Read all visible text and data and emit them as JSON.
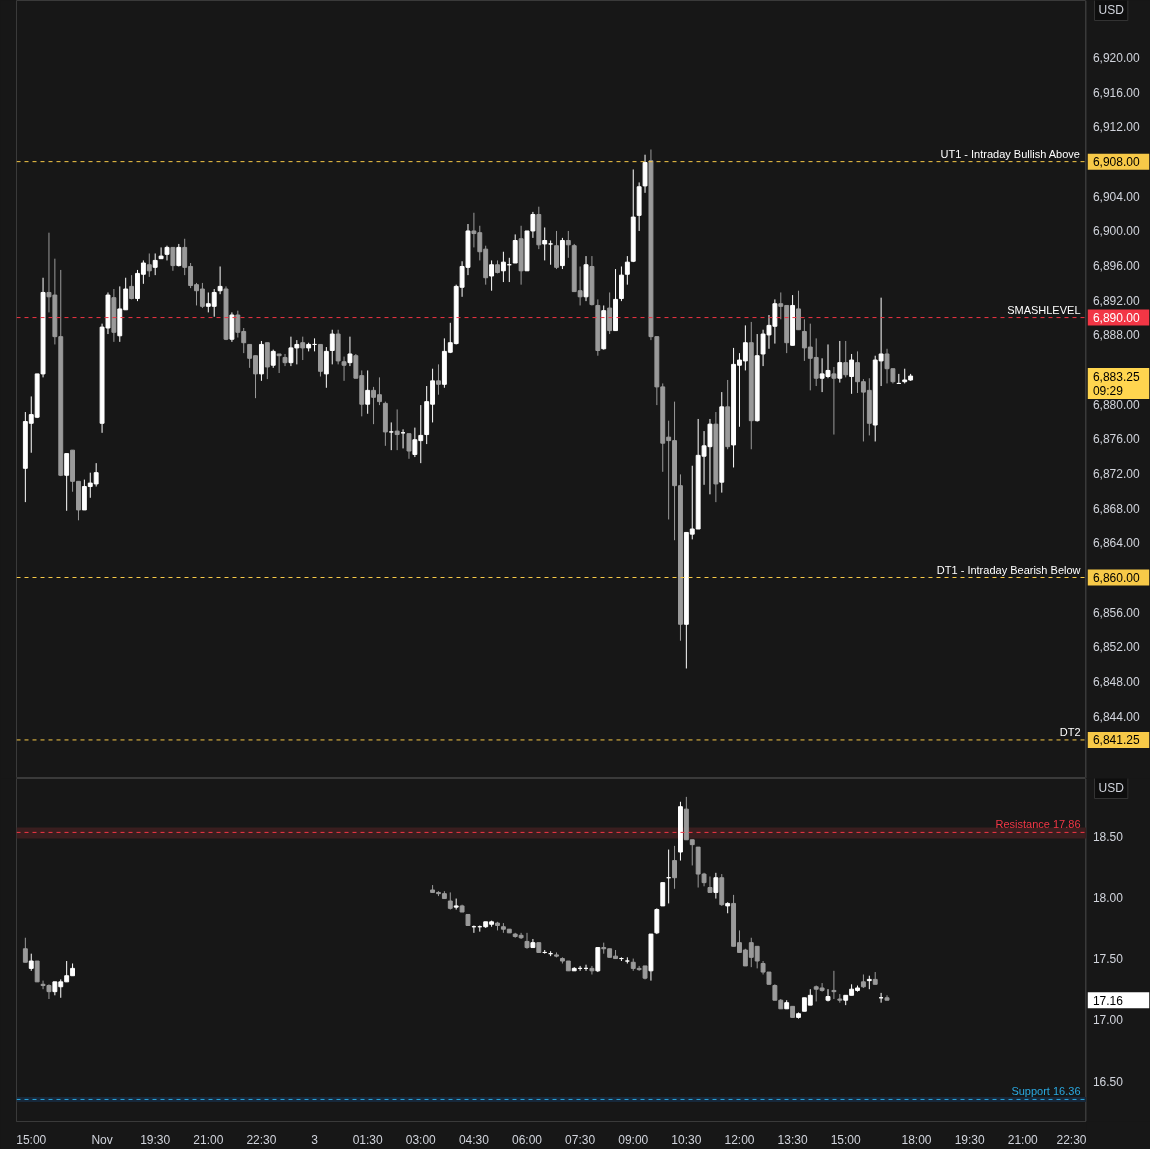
{
  "chart_data": [
    {
      "type": "candlestick",
      "categories": [
        null,
        null,
        null,
        null,
        null,
        null,
        null,
        null,
        null,
        null,
        null,
        null,
        null,
        null,
        null,
        null,
        null,
        null,
        null,
        null,
        null,
        null,
        null,
        null,
        null,
        null,
        null,
        null,
        null,
        null,
        null,
        null,
        null,
        null,
        null,
        null,
        null,
        null,
        null,
        null,
        null,
        null,
        null,
        null,
        null,
        null,
        null,
        null,
        null,
        null,
        null,
        null,
        null,
        null,
        null,
        null,
        null,
        null,
        null,
        null,
        null,
        null,
        null,
        null,
        null,
        null,
        null,
        null,
        null,
        null,
        null,
        null,
        null,
        null,
        null,
        null,
        null,
        null,
        null,
        null,
        null,
        null,
        null,
        null,
        null,
        null,
        null,
        null,
        null,
        null,
        null,
        null,
        null,
        null,
        null,
        null,
        null,
        null,
        null,
        null,
        null,
        null,
        null,
        null,
        null,
        null,
        null,
        null,
        null,
        null,
        null,
        null,
        null,
        null,
        null,
        null,
        null,
        null,
        null,
        null,
        null,
        null,
        null,
        null,
        null,
        null,
        null,
        null,
        null,
        null,
        null,
        null,
        null,
        null,
        null,
        null,
        null,
        null,
        null,
        null,
        null,
        null,
        null,
        null,
        null,
        null,
        null,
        null,
        null,
        null,
        null,
        null,
        null,
        null,
        null,
        null,
        null,
        null,
        null,
        null,
        null,
        null,
        null,
        null,
        null,
        null,
        null,
        null,
        null,
        null,
        null,
        null,
        null,
        null,
        null,
        null,
        null,
        null,
        null,
        null,
        null
      ],
      "ohlc": [
        null,
        [
          6872.6,
          6879.1,
          6868.7,
          6878.0
        ],
        [
          6877.8,
          6880.9,
          6874.4,
          6878.8
        ],
        [
          6878.5,
          6883.5,
          6878.4,
          6883.5
        ],
        [
          6883.5,
          6894.6,
          6883.1,
          6892.9
        ],
        [
          6892.9,
          6899.8,
          6890.6,
          6892.4
        ],
        [
          6892.6,
          6896.8,
          6886.9,
          6887.8
        ],
        [
          6887.8,
          6895.5,
          6871.7,
          6871.8
        ],
        [
          6871.8,
          6874.3,
          6867.7,
          6874.3
        ],
        [
          6874.7,
          6874.7,
          6869.9,
          6871.1
        ],
        [
          6871.1,
          6871.1,
          6866.6,
          6867.8
        ],
        [
          6867.8,
          6871.3,
          6867.8,
          6870.5
        ],
        [
          6870.5,
          6872.1,
          6869.2,
          6870.9
        ],
        [
          6870.8,
          6873.2,
          6870.5,
          6872.1
        ],
        [
          6877.8,
          6889.3,
          6876.7,
          6888.9
        ],
        [
          6888.8,
          6892.9,
          6888.1,
          6892.6
        ],
        [
          6892.3,
          6893.3,
          6887.2,
          6888.3
        ],
        [
          6887.9,
          6893.6,
          6887.2,
          6891.0
        ],
        [
          6890.9,
          6894.6,
          6890.9,
          6893.3
        ],
        [
          6893.6,
          6894.9,
          6892.1,
          6892.2
        ],
        [
          6892.2,
          6895.5,
          6891.9,
          6895.1
        ],
        [
          6895.0,
          6896.6,
          6893.9,
          6896.3
        ],
        [
          6896.1,
          6897.4,
          6894.7,
          6895.4
        ],
        [
          6895.8,
          6897.4,
          6894.9,
          6896.6
        ],
        [
          6896.8,
          6898.1,
          6896.8,
          6897.1
        ],
        [
          6897.3,
          6898.3,
          6896.6,
          6898.1
        ],
        [
          6898.1,
          6898.1,
          6895.4,
          6896.0
        ],
        [
          6896.0,
          6898.5,
          6895.9,
          6898.1
        ],
        [
          6898.1,
          6899.1,
          6894.9,
          6895.8
        ],
        [
          6895.9,
          6896.3,
          6893.4,
          6893.7
        ],
        [
          6893.8,
          6894.0,
          6891.4,
          6893.1
        ],
        [
          6893.3,
          6894.0,
          6891.1,
          6891.3
        ],
        [
          6891.3,
          6892.9,
          6890.6,
          6891.6
        ],
        [
          6891.3,
          6893.3,
          6890.1,
          6892.9
        ],
        [
          6893.1,
          6895.9,
          6892.7,
          6893.6
        ],
        [
          6893.3,
          6893.6,
          6887.4,
          6887.5
        ],
        [
          6887.5,
          6890.6,
          6887.2,
          6890.3
        ],
        [
          6890.3,
          6890.8,
          6887.7,
          6888.3
        ],
        [
          6888.4,
          6888.8,
          6885.9,
          6887.1
        ],
        [
          6886.9,
          6886.9,
          6884.2,
          6885.3
        ],
        [
          6885.6,
          6885.6,
          6880.7,
          6883.5
        ],
        [
          6883.5,
          6887.3,
          6882.7,
          6886.9
        ],
        [
          6887.1,
          6887.1,
          6882.9,
          6884.3
        ],
        [
          6884.5,
          6886.3,
          6884.2,
          6886.1
        ],
        [
          6885.8,
          6885.8,
          6883.6,
          6885.6
        ],
        [
          6885.4,
          6885.8,
          6884.4,
          6884.8
        ],
        [
          6884.8,
          6887.8,
          6884.4,
          6886.5
        ],
        [
          6886.5,
          6887.4,
          6884.6,
          6886.9
        ],
        [
          6887.1,
          6887.8,
          6885.1,
          6886.5
        ],
        [
          6886.5,
          6887.1,
          6886.1,
          6886.9
        ],
        [
          6886.9,
          6887.6,
          6886.1,
          6886.9
        ],
        [
          6886.9,
          6886.9,
          6883.2,
          6883.8
        ],
        [
          6883.5,
          6886.6,
          6881.9,
          6886.1
        ],
        [
          6886.2,
          6888.6,
          6884.6,
          6888.1
        ],
        [
          6888.1,
          6888.6,
          6884.6,
          6885.0
        ],
        [
          6884.9,
          6885.5,
          6882.7,
          6884.5
        ],
        [
          6884.8,
          6887.8,
          6884.4,
          6885.8
        ],
        [
          6885.6,
          6885.8,
          6883.0,
          6883.0
        ],
        [
          6883.3,
          6883.9,
          6878.6,
          6880.0
        ],
        [
          6880.0,
          6883.9,
          6878.9,
          6881.6
        ],
        [
          6881.6,
          6882.0,
          6877.7,
          6880.8
        ],
        [
          6881.1,
          6883.1,
          6879.9,
          6880.3
        ],
        [
          6880.1,
          6880.3,
          6875.2,
          6876.8
        ],
        [
          6876.8,
          6877.9,
          6874.7,
          6876.8
        ],
        [
          6876.9,
          6879.4,
          6874.7,
          6876.5
        ],
        [
          6876.7,
          6877.1,
          6874.9,
          6876.7
        ],
        [
          6876.6,
          6876.6,
          6873.7,
          6874.6
        ],
        [
          6874.2,
          6877.3,
          6873.9,
          6875.9
        ],
        [
          6875.8,
          6879.9,
          6873.2,
          6876.4
        ],
        [
          6876.5,
          6882.1,
          6875.4,
          6880.3
        ],
        [
          6880.0,
          6884.1,
          6877.9,
          6882.7
        ],
        [
          6882.7,
          6884.6,
          6881.1,
          6882.3
        ],
        [
          6882.3,
          6887.6,
          6881.9,
          6886.1
        ],
        [
          6886.0,
          6889.4,
          6885.9,
          6887.1
        ],
        [
          6887.0,
          6893.8,
          6886.9,
          6893.6
        ],
        [
          6893.5,
          6896.5,
          6892.4,
          6895.9
        ],
        [
          6895.8,
          6900.8,
          6894.9,
          6900.0
        ],
        [
          6900.0,
          6902.1,
          6898.1,
          6899.7
        ],
        [
          6899.8,
          6900.6,
          6896.6,
          6897.6
        ],
        [
          6897.9,
          6898.3,
          6893.8,
          6894.6
        ],
        [
          6894.8,
          6896.6,
          6893.1,
          6896.1
        ],
        [
          6896.1,
          6896.6,
          6895.1,
          6895.2
        ],
        [
          6895.4,
          6897.6,
          6894.1,
          6896.4
        ],
        [
          6896.1,
          6896.9,
          6894.1,
          6896.1
        ],
        [
          6896.3,
          6899.6,
          6896.3,
          6898.9
        ],
        [
          6899.1,
          6900.6,
          6893.8,
          6895.4
        ],
        [
          6895.4,
          6900.0,
          6895.4,
          6900.0
        ],
        [
          6900.0,
          6902.2,
          6899.2,
          6901.9
        ],
        [
          6901.9,
          6902.8,
          6897.9,
          6898.4
        ],
        [
          6898.5,
          6900.4,
          6896.6,
          6898.9
        ],
        [
          6898.5,
          6898.9,
          6896.1,
          6898.5
        ],
        [
          6898.3,
          6900.0,
          6895.6,
          6895.8
        ],
        [
          6896.0,
          6899.2,
          6895.6,
          6898.9
        ],
        [
          6898.9,
          6900.0,
          6896.9,
          6898.4
        ],
        [
          6898.3,
          6898.5,
          6893.0,
          6893.0
        ],
        [
          6893.1,
          6895.9,
          6891.4,
          6892.4
        ],
        [
          6892.4,
          6897.1,
          6891.9,
          6896.1
        ],
        [
          6895.9,
          6897.1,
          6891.4,
          6891.5
        ],
        [
          6891.4,
          6892.1,
          6885.6,
          6886.2
        ],
        [
          6886.4,
          6891.4,
          6886.3,
          6890.8
        ],
        [
          6891.1,
          6892.9,
          6888.1,
          6888.5
        ],
        [
          6888.5,
          6895.6,
          6888.5,
          6892.1
        ],
        [
          6892.2,
          6895.9,
          6891.9,
          6894.9
        ],
        [
          6895.0,
          6897.1,
          6893.8,
          6896.4
        ],
        [
          6896.5,
          6907.1,
          6896.4,
          6901.6
        ],
        [
          6901.8,
          6905.6,
          6900.0,
          6905.1
        ],
        [
          6905.2,
          6908.8,
          6904.4,
          6907.9
        ],
        [
          6908.1,
          6909.4,
          6887.4,
          6887.8
        ],
        [
          6887.8,
          6887.8,
          6879.9,
          6882.0
        ],
        [
          6882.0,
          6882.4,
          6872.2,
          6875.5
        ],
        [
          6876.2,
          6878.1,
          6866.7,
          6875.8
        ],
        [
          6875.8,
          6880.3,
          6864.3,
          6870.6
        ],
        [
          6870.6,
          6871.9,
          6852.7,
          6854.6
        ],
        [
          6854.6,
          6865.2,
          6849.5,
          6865.2
        ],
        [
          6865.0,
          6872.9,
          6864.4,
          6865.6
        ],
        [
          6865.6,
          6878.3,
          6865.6,
          6874.1
        ],
        [
          6874.0,
          6876.9,
          6870.7,
          6875.2
        ],
        [
          6875.1,
          6878.3,
          6869.6,
          6877.7
        ],
        [
          6877.7,
          6879.1,
          6868.7,
          6870.8
        ],
        [
          6871.0,
          6881.4,
          6869.8,
          6879.7
        ],
        [
          6879.7,
          6882.8,
          6874.8,
          6875.1
        ],
        [
          6875.3,
          6886.5,
          6872.7,
          6884.6
        ],
        [
          6884.5,
          6885.9,
          6877.4,
          6885.1
        ],
        [
          6885.0,
          6889.1,
          6883.9,
          6887.1
        ],
        [
          6887.1,
          6889.5,
          6874.8,
          6878.1
        ],
        [
          6878.1,
          6888.1,
          6878.0,
          6885.6
        ],
        [
          6885.8,
          6888.6,
          6884.4,
          6888.1
        ],
        [
          6888.0,
          6890.3,
          6886.4,
          6889.1
        ],
        [
          6889.0,
          6892.1,
          6887.0,
          6891.6
        ],
        [
          6891.6,
          6892.9,
          6889.8,
          6891.3
        ],
        [
          6891.4,
          6891.4,
          6885.9,
          6887.1
        ],
        [
          6886.8,
          6892.6,
          6886.8,
          6891.4
        ],
        [
          6891.0,
          6893.1,
          6888.6,
          6888.6
        ],
        [
          6888.4,
          6889.8,
          6885.0,
          6886.5
        ],
        [
          6886.6,
          6889.3,
          6881.6,
          6885.3
        ],
        [
          6885.4,
          6887.6,
          6882.1,
          6883.0
        ],
        [
          6883.0,
          6885.3,
          6881.4,
          6883.5
        ],
        [
          6883.2,
          6886.9,
          6883.0,
          6883.9
        ],
        [
          6883.5,
          6884.3,
          6876.5,
          6883.0
        ],
        [
          6883.0,
          6887.3,
          6882.5,
          6884.8
        ],
        [
          6884.8,
          6887.3,
          6883.1,
          6883.4
        ],
        [
          6883.2,
          6885.8,
          6881.2,
          6885.1
        ],
        [
          6884.8,
          6886.1,
          6881.3,
          6882.6
        ],
        [
          6882.6,
          6882.9,
          6875.7,
          6881.4
        ],
        [
          6881.6,
          6883.0,
          6876.4,
          6877.8
        ],
        [
          6877.6,
          6885.6,
          6875.7,
          6885.1
        ],
        [
          6885.0,
          6892.3,
          6882.1,
          6885.8
        ],
        [
          6885.8,
          6886.4,
          6882.4,
          6884.1
        ],
        [
          6884.1,
          6884.1,
          6882.4,
          6882.6
        ],
        [
          6882.4,
          6883.5,
          6882.4,
          6882.4
        ],
        [
          6882.6,
          6884.1,
          6882.4,
          6882.8
        ],
        [
          6882.8,
          6883.5,
          6882.7,
          6883.25
        ],
        null,
        null,
        null,
        null,
        null,
        null,
        null,
        null,
        null,
        null,
        null,
        null,
        null,
        null,
        null,
        null,
        null,
        null,
        null,
        null,
        null,
        null,
        null,
        null,
        null,
        null,
        null,
        null,
        null
      ],
      "ylim": [
        6836.8,
        6926.6
      ],
      "yticks": [
        {
          "value": 6841.25,
          "label": "6,841.25"
        },
        {
          "value": 6844,
          "label": "6,844.00"
        },
        {
          "value": 6848,
          "label": "6,848.00"
        },
        {
          "value": 6852,
          "label": "6,852.00"
        },
        {
          "value": 6856,
          "label": "6,856.00"
        },
        {
          "value": 6860,
          "label": "6,860.00"
        },
        {
          "value": 6864,
          "label": "6,864.00"
        },
        {
          "value": 6868,
          "label": "6,868.00"
        },
        {
          "value": 6872,
          "label": "6,872.00"
        },
        {
          "value": 6876,
          "label": "6,876.00"
        },
        {
          "value": 6880,
          "label": "6,880.00"
        },
        {
          "value": 6883.25,
          "label": "6,883.25"
        },
        {
          "value": 6888,
          "label": "6,888.00"
        },
        {
          "value": 6890,
          "label": "6,890.00"
        },
        {
          "value": 6892,
          "label": "6,892.00"
        },
        {
          "value": 6896,
          "label": "6,896.00"
        },
        {
          "value": 6900,
          "label": "6,900.00"
        },
        {
          "value": 6904,
          "label": "6,904.00"
        },
        {
          "value": 6908,
          "label": "6,908.00"
        },
        {
          "value": 6912,
          "label": "6,912.00"
        },
        {
          "value": 6916,
          "label": "6,916.00"
        },
        {
          "value": 6920,
          "label": "6,920.00"
        }
      ],
      "tick_labels": "y",
      "ref_lines": [
        {
          "axis": "y",
          "value": 6908,
          "label": "UT1 - Intraday Bullish Above",
          "color": "#f7c948",
          "line_style": "dashed"
        },
        {
          "axis": "y",
          "value": 6890,
          "label": "SMASHLEVEL",
          "color": "#f23645",
          "line_style": "dashed"
        },
        {
          "axis": "y",
          "value": 6860,
          "label": "DT1 - Intraday Bearish Below",
          "color": "#f7c948",
          "line_style": "dashed"
        },
        {
          "axis": "y",
          "value": 6841.25,
          "label": "DT2",
          "color": "#f7c948",
          "line_style": "dashed"
        }
      ],
      "annotations": [
        "USD",
        "09:29"
      ]
    },
    {
      "type": "candlestick",
      "categories": [
        null,
        null,
        "15:00",
        null,
        null,
        null,
        null,
        null,
        null,
        null,
        null,
        null,
        null,
        null,
        "Nov",
        null,
        null,
        null,
        null,
        null,
        null,
        null,
        null,
        "19:30",
        null,
        null,
        null,
        null,
        null,
        null,
        null,
        null,
        "21:00",
        null,
        null,
        null,
        null,
        null,
        null,
        null,
        null,
        "22:30",
        null,
        null,
        null,
        null,
        null,
        null,
        null,
        null,
        "3",
        null,
        null,
        null,
        null,
        null,
        null,
        null,
        null,
        "01:30",
        null,
        null,
        null,
        null,
        null,
        null,
        null,
        null,
        "03:00",
        null,
        null,
        null,
        null,
        null,
        null,
        null,
        null,
        "04:30",
        null,
        null,
        null,
        null,
        null,
        null,
        null,
        null,
        "06:00",
        null,
        null,
        null,
        null,
        null,
        null,
        null,
        null,
        "07:30",
        null,
        null,
        null,
        null,
        null,
        null,
        null,
        null,
        "09:00",
        null,
        null,
        null,
        null,
        null,
        null,
        null,
        null,
        "10:30",
        null,
        null,
        null,
        null,
        null,
        null,
        null,
        null,
        "12:00",
        null,
        null,
        null,
        null,
        null,
        null,
        null,
        null,
        "13:30",
        null,
        null,
        null,
        null,
        null,
        null,
        null,
        null,
        "15:00",
        null,
        null,
        null,
        null,
        null,
        null,
        null,
        null,
        null,
        null,
        null,
        "18:00",
        null,
        null,
        null,
        null,
        null,
        null,
        null,
        null,
        "19:30",
        null,
        null,
        null,
        null,
        null,
        null,
        null,
        null,
        "21:00",
        null,
        null,
        null,
        null,
        null,
        null,
        null,
        null,
        "22:30",
        null
      ],
      "ohlc": [
        null,
        [
          17.58,
          17.67,
          17.47,
          17.47
        ],
        [
          17.42,
          17.54,
          17.4,
          17.48
        ],
        [
          17.48,
          17.48,
          17.31,
          17.31
        ],
        [
          17.29,
          17.32,
          17.25,
          17.28
        ],
        [
          17.28,
          17.29,
          17.17,
          17.23
        ],
        [
          17.23,
          17.31,
          17.2,
          17.31
        ],
        [
          17.27,
          17.33,
          17.18,
          17.31
        ],
        [
          17.31,
          17.48,
          17.31,
          17.36
        ],
        [
          17.36,
          17.46,
          17.36,
          17.42
        ],
        null,
        null,
        null,
        null,
        null,
        null,
        null,
        null,
        null,
        null,
        null,
        null,
        null,
        null,
        null,
        null,
        null,
        null,
        null,
        null,
        null,
        null,
        null,
        null,
        null,
        null,
        null,
        null,
        null,
        null,
        null,
        null,
        null,
        null,
        null,
        null,
        null,
        null,
        null,
        null,
        null,
        null,
        null,
        null,
        null,
        null,
        null,
        null,
        null,
        null,
        null,
        null,
        null,
        null,
        null,
        null,
        null,
        null,
        null,
        null,
        [
          18.06,
          18.1,
          18.04,
          18.04
        ],
        [
          18.04,
          18.05,
          18.01,
          18.03
        ],
        [
          18.03,
          18.05,
          17.99,
          17.99
        ],
        [
          17.97,
          18.04,
          17.9,
          17.91
        ],
        [
          17.92,
          17.99,
          17.9,
          17.93
        ],
        [
          17.93,
          17.94,
          17.88,
          17.88
        ],
        [
          17.86,
          17.86,
          17.77,
          17.77
        ],
        [
          17.76,
          17.77,
          17.71,
          17.76
        ],
        [
          17.76,
          17.77,
          17.72,
          17.76
        ],
        [
          17.76,
          17.8,
          17.75,
          17.8
        ],
        [
          17.78,
          17.81,
          17.76,
          17.8
        ],
        [
          17.79,
          17.8,
          17.73,
          17.77
        ],
        [
          17.76,
          17.79,
          17.71,
          17.74
        ],
        [
          17.74,
          17.74,
          17.71,
          17.71
        ],
        [
          17.7,
          17.71,
          17.67,
          17.68
        ],
        [
          17.69,
          17.71,
          17.66,
          17.67
        ],
        [
          17.64,
          17.71,
          17.58,
          17.59
        ],
        [
          17.59,
          17.66,
          17.59,
          17.63
        ],
        [
          17.63,
          17.63,
          17.55,
          17.55
        ],
        [
          17.55,
          17.57,
          17.54,
          17.55
        ],
        [
          17.54,
          17.56,
          17.52,
          17.54
        ],
        [
          17.53,
          17.55,
          17.51,
          17.52
        ],
        [
          17.5,
          17.51,
          17.46,
          17.48
        ],
        [
          17.48,
          17.48,
          17.4,
          17.4
        ],
        [
          17.4,
          17.43,
          17.4,
          17.42
        ],
        [
          17.42,
          17.44,
          17.4,
          17.42
        ],
        [
          17.42,
          17.45,
          17.4,
          17.42
        ],
        [
          17.42,
          17.44,
          17.37,
          17.4
        ],
        [
          17.4,
          17.59,
          17.39,
          17.59
        ],
        [
          17.59,
          17.63,
          17.54,
          17.58
        ],
        [
          17.58,
          17.58,
          17.51,
          17.51
        ],
        [
          17.52,
          17.57,
          17.5,
          17.5
        ],
        [
          17.5,
          17.51,
          17.48,
          17.5
        ],
        [
          17.48,
          17.51,
          17.46,
          17.48
        ],
        [
          17.47,
          17.5,
          17.4,
          17.42
        ],
        [
          17.42,
          17.44,
          17.4,
          17.41
        ],
        [
          17.44,
          17.44,
          17.33,
          17.34
        ],
        [
          17.4,
          17.7,
          17.32,
          17.7
        ],
        [
          17.71,
          17.91,
          17.7,
          17.9
        ],
        [
          17.93,
          18.12,
          17.93,
          18.12
        ],
        [
          18.16,
          18.39,
          17.95,
          18.16
        ],
        [
          18.3,
          18.42,
          18.07,
          18.16
        ],
        [
          18.37,
          18.78,
          18.3,
          18.74
        ],
        [
          18.72,
          18.82,
          18.47,
          18.47
        ],
        [
          18.47,
          18.47,
          18.26,
          18.43
        ],
        [
          18.41,
          18.41,
          18.08,
          18.19
        ],
        [
          18.19,
          18.2,
          18.09,
          18.12
        ],
        [
          18.08,
          18.17,
          18.04,
          18.04
        ],
        [
          18.04,
          18.2,
          17.99,
          18.16
        ],
        [
          18.16,
          18.19,
          17.93,
          17.94
        ],
        [
          17.93,
          17.96,
          17.87,
          17.95
        ],
        [
          17.95,
          18.02,
          17.6,
          17.6
        ],
        [
          17.63,
          17.73,
          17.55,
          17.55
        ],
        [
          17.57,
          17.58,
          17.44,
          17.44
        ],
        [
          17.63,
          17.67,
          17.43,
          17.51
        ],
        [
          17.6,
          17.6,
          17.42,
          17.48
        ],
        [
          17.46,
          17.48,
          17.37,
          17.39
        ],
        [
          17.39,
          17.39,
          17.29,
          17.29
        ],
        [
          17.28,
          17.29,
          17.16,
          17.16
        ],
        [
          17.16,
          17.17,
          17.09,
          17.09
        ],
        [
          17.09,
          17.16,
          17.09,
          17.14
        ],
        [
          17.11,
          17.11,
          17.02,
          17.02
        ],
        [
          17.02,
          17.06,
          17.01,
          17.05
        ],
        [
          17.07,
          17.18,
          17.07,
          17.18
        ],
        [
          17.12,
          17.25,
          17.12,
          17.2
        ],
        [
          17.27,
          17.28,
          17.15,
          17.25
        ],
        [
          17.26,
          17.3,
          17.23,
          17.24
        ],
        [
          17.16,
          17.25,
          17.15,
          17.19
        ],
        [
          17.24,
          17.4,
          17.17,
          17.23
        ],
        [
          17.17,
          17.21,
          17.14,
          17.16
        ],
        [
          17.16,
          17.2,
          17.12,
          17.2
        ],
        [
          17.2,
          17.29,
          17.2,
          17.25
        ],
        [
          17.24,
          17.28,
          17.23,
          17.26
        ],
        [
          17.31,
          17.37,
          17.26,
          17.27
        ],
        [
          17.32,
          17.36,
          17.25,
          17.33
        ],
        [
          17.33,
          17.39,
          17.29,
          17.29
        ],
        [
          17.18,
          17.22,
          17.14,
          17.18
        ],
        [
          17.18,
          17.2,
          17.16,
          17.16
        ],
        null,
        null,
        null,
        null,
        null,
        null,
        null,
        null,
        null,
        null,
        null,
        null,
        null,
        null,
        null,
        null,
        null,
        null,
        null,
        null,
        null,
        null,
        null,
        null,
        null,
        null,
        null,
        null,
        null,
        null,
        null,
        null,
        null
      ],
      "ylim": [
        16.17,
        18.97
      ],
      "yticks": [
        {
          "value": 16.5,
          "label": "16.50"
        },
        {
          "value": 17,
          "label": "17.00"
        },
        {
          "value": 17.16,
          "label": "17.16"
        },
        {
          "value": 17.5,
          "label": "17.50"
        },
        {
          "value": 18,
          "label": "18.00"
        },
        {
          "value": 18.5,
          "label": "18.50"
        }
      ],
      "ref_lines": [
        {
          "axis": "y",
          "value": 18.53,
          "label": "Resistance 17.86",
          "color": "#f23645",
          "line_style": "dashed"
        },
        {
          "axis": "y",
          "value": 16.35,
          "label": "Support 16.36",
          "color": "#2aa8e0",
          "line_style": "dashed"
        }
      ],
      "bands": [
        {
          "axis": "y",
          "from": 18.48,
          "to": 18.57,
          "color": "#3a1e1f"
        },
        {
          "axis": "y",
          "from": 16.33,
          "to": 16.37,
          "color": "#17283a"
        }
      ],
      "annotations": [
        "USD"
      ]
    }
  ]
}
